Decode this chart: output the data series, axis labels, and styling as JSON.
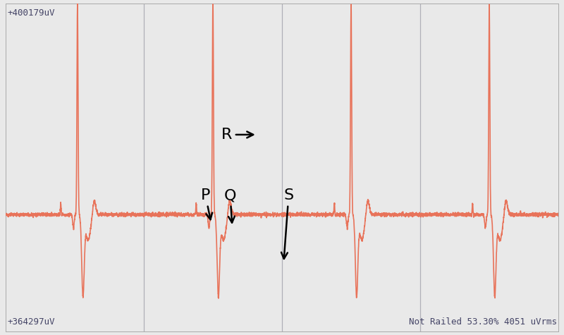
{
  "background_color": "#e9e9e9",
  "ecg_color": "#e8735a",
  "ecg_linewidth": 1.2,
  "top_label": "+400179uV",
  "bottom_label": "+364297uV",
  "bottom_right_label": "Not Railed 53.30% 4051 uVrms",
  "label_color": "#444466",
  "label_fontsize": 9,
  "vline_color": "#b0b0b8",
  "vline_positions": [
    0.25,
    0.5,
    0.75
  ],
  "annotation_fontsize": 16,
  "beat_centers": [
    0.13,
    0.375,
    0.625,
    0.875
  ],
  "beat_scale": 0.055,
  "baseline_y": 0.13,
  "r_amplitude": 0.92,
  "ylim_low": -0.38,
  "ylim_high": 1.05
}
